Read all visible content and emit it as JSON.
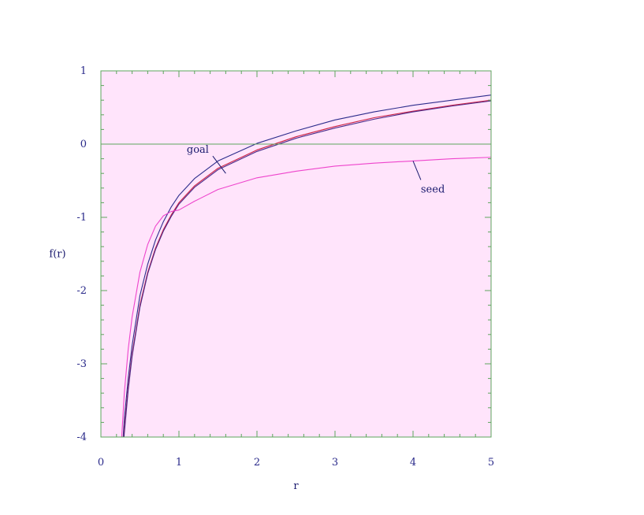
{
  "chart_data": {
    "type": "line",
    "title": "",
    "xlabel": "r",
    "ylabel": "f(r)",
    "xlim": [
      0,
      5
    ],
    "ylim": [
      -4,
      1
    ],
    "x_ticks": [
      0,
      1,
      2,
      3,
      4,
      5
    ],
    "x_tick_labels": [
      "0",
      "1",
      "2",
      "3",
      "4",
      "5"
    ],
    "y_ticks": [
      1,
      0,
      -1,
      -2,
      -3,
      -4
    ],
    "y_tick_labels": [
      "1",
      "0",
      "-1",
      "-2",
      "-3",
      "-4"
    ],
    "zero_line": true,
    "grid": false,
    "legend": "none",
    "colors": {
      "plot_background": "#ffe4fb",
      "frame": "#5ca65c",
      "tick_text": "#2a2a8a",
      "axis_text": "#1a1a6e",
      "annotation_text": "#1a1a6e"
    },
    "x": [
      0.25,
      0.3,
      0.35,
      0.4,
      0.5,
      0.6,
      0.7,
      0.8,
      0.9,
      1.0,
      1.2,
      1.5,
      2.0,
      2.5,
      3.0,
      3.5,
      4.0,
      4.5,
      5.0
    ],
    "series": [
      {
        "color": "#2c2c8c",
        "values": [
          -4.6,
          -3.75,
          -3.2,
          -2.75,
          -2.07,
          -1.64,
          -1.31,
          -1.06,
          -0.86,
          -0.7,
          -0.47,
          -0.23,
          0.01,
          0.18,
          0.33,
          0.44,
          0.53,
          0.6,
          0.67
        ]
      },
      {
        "color": "#cc2244",
        "values": [
          -4.7,
          -3.9,
          -3.32,
          -2.87,
          -2.2,
          -1.75,
          -1.42,
          -1.17,
          -0.97,
          -0.8,
          -0.57,
          -0.33,
          -0.08,
          0.1,
          0.24,
          0.36,
          0.45,
          0.53,
          0.6
        ]
      },
      {
        "color": "#4a2a8a",
        "values": [
          -4.75,
          -3.95,
          -3.36,
          -2.9,
          -2.23,
          -1.77,
          -1.44,
          -1.19,
          -0.99,
          -0.82,
          -0.59,
          -0.35,
          -0.1,
          0.08,
          0.22,
          0.34,
          0.44,
          0.52,
          0.59
        ]
      },
      {
        "color": "#ee44cc",
        "values": [
          -4.3,
          -3.4,
          -2.8,
          -2.36,
          -1.75,
          -1.37,
          -1.12,
          -0.98,
          -0.92,
          -0.9,
          -0.78,
          -0.62,
          -0.46,
          -0.37,
          -0.3,
          -0.26,
          -0.23,
          -0.2,
          -0.18
        ]
      }
    ],
    "annotations": [
      {
        "text": "goal",
        "x_text": 1.1,
        "y_text": -0.12,
        "x_point": 1.6,
        "y_point": -0.4
      },
      {
        "text": "seed",
        "x_text": 4.1,
        "y_text": -0.66,
        "x_point": 4.0,
        "y_point": -0.23
      }
    ]
  }
}
